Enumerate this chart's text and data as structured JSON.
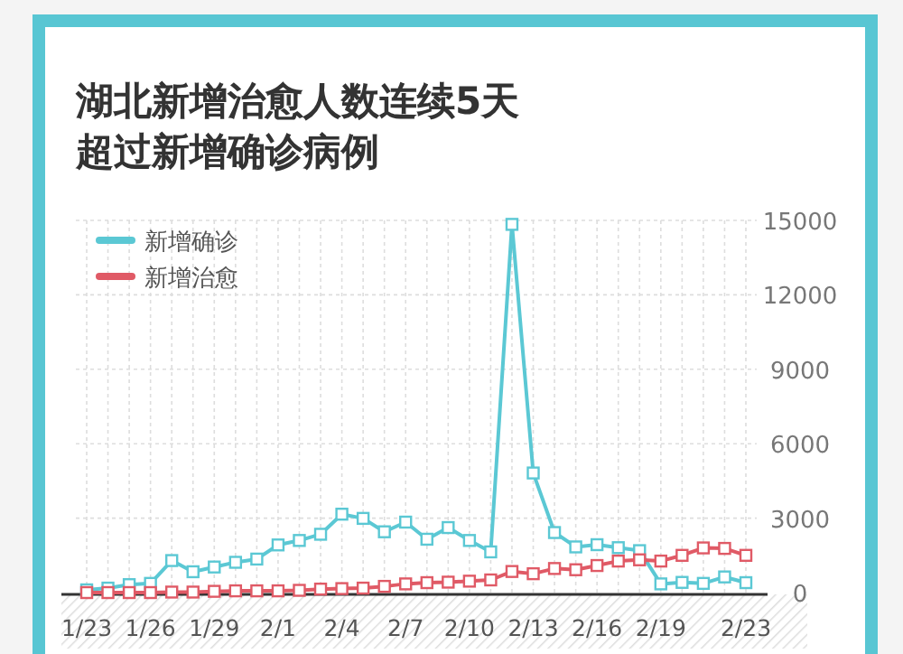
{
  "chart_data": {
    "type": "line",
    "title": "湖北新增治愈人数连续5天超过新增确诊病例",
    "categories": [
      "1/23",
      null,
      null,
      "1/26",
      null,
      null,
      "1/29",
      null,
      null,
      "2/1",
      null,
      null,
      "2/4",
      null,
      null,
      "2/7",
      null,
      null,
      "2/10",
      null,
      null,
      "2/13",
      null,
      null,
      "2/16",
      null,
      null,
      "2/19",
      null,
      null,
      null,
      "2/23"
    ],
    "series": [
      {
        "name": "新增确诊",
        "color": "#5bc8d4",
        "values": [
          110,
          180,
          320,
          370,
          1290,
          840,
          1030,
          1220,
          1350,
          1920,
          2100,
          2350,
          3160,
          2990,
          2450,
          2840,
          2150,
          2620,
          2100,
          1640,
          14840,
          4820,
          2420,
          1840,
          1930,
          1810,
          1690,
          350,
          410,
          370,
          630,
          400
        ]
      },
      {
        "name": "新增治愈",
        "color": "#e05a66",
        "values": [
          0,
          0,
          0,
          0,
          20,
          20,
          50,
          70,
          70,
          70,
          90,
          140,
          160,
          180,
          250,
          350,
          400,
          420,
          460,
          510,
          850,
          760,
          970,
          920,
          1090,
          1270,
          1320,
          1270,
          1500,
          1800,
          1780,
          1500
        ]
      }
    ],
    "ylim": [
      0,
      15000
    ],
    "yticks": [
      0,
      3000,
      6000,
      9000,
      12000,
      15000
    ],
    "grid": true,
    "legend": "top left",
    "marker": "square",
    "line_style": "solid"
  }
}
